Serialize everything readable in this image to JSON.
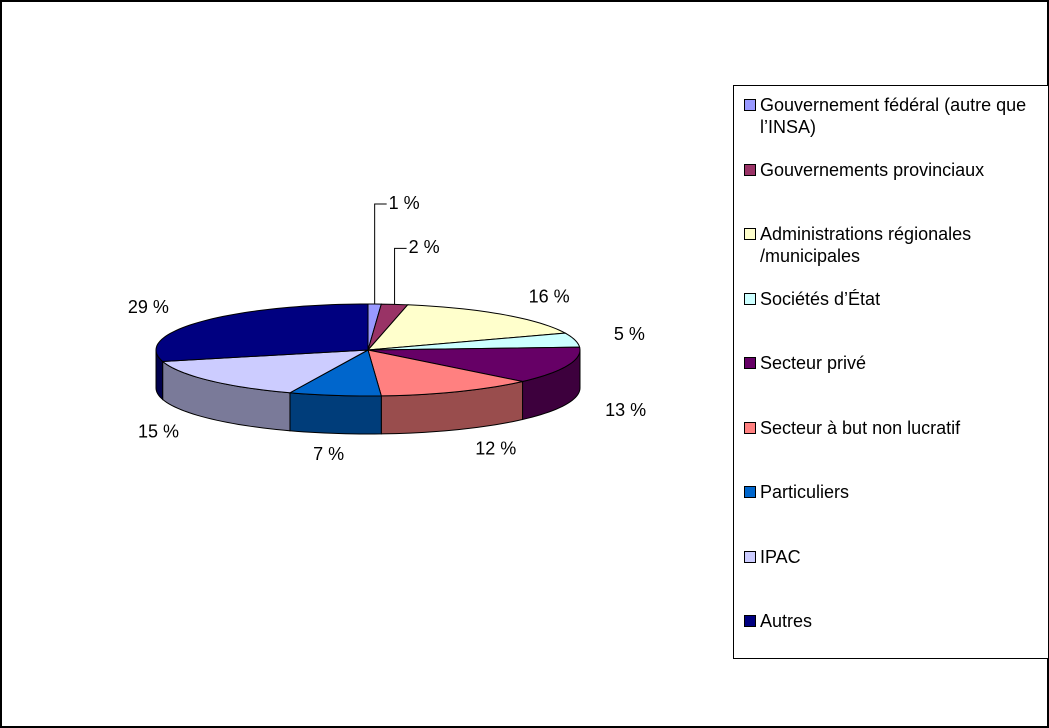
{
  "chart_data": {
    "type": "pie3d",
    "categories": [
      "Gouvernement fédéral (autre que l’INSA)",
      "Gouvernements provinciaux",
      "Administrations régionales /municipales",
      "Sociétés d’État",
      "Secteur privé",
      "Secteur à but non lucratif",
      "Particuliers",
      "IPAC",
      "Autres"
    ],
    "values": [
      1,
      2,
      16,
      5,
      13,
      12,
      7,
      15,
      29
    ],
    "value_labels": [
      "1 %",
      "2 %",
      "16 %",
      "5 %",
      "13 %",
      "12 %",
      "7 %",
      "15 %",
      "29 %"
    ],
    "colors": [
      "#9999ff",
      "#993366",
      "#ffffcc",
      "#ccffff",
      "#660066",
      "#ff8080",
      "#0066cc",
      "#ccccff",
      "#000080"
    ],
    "legend": "right"
  }
}
